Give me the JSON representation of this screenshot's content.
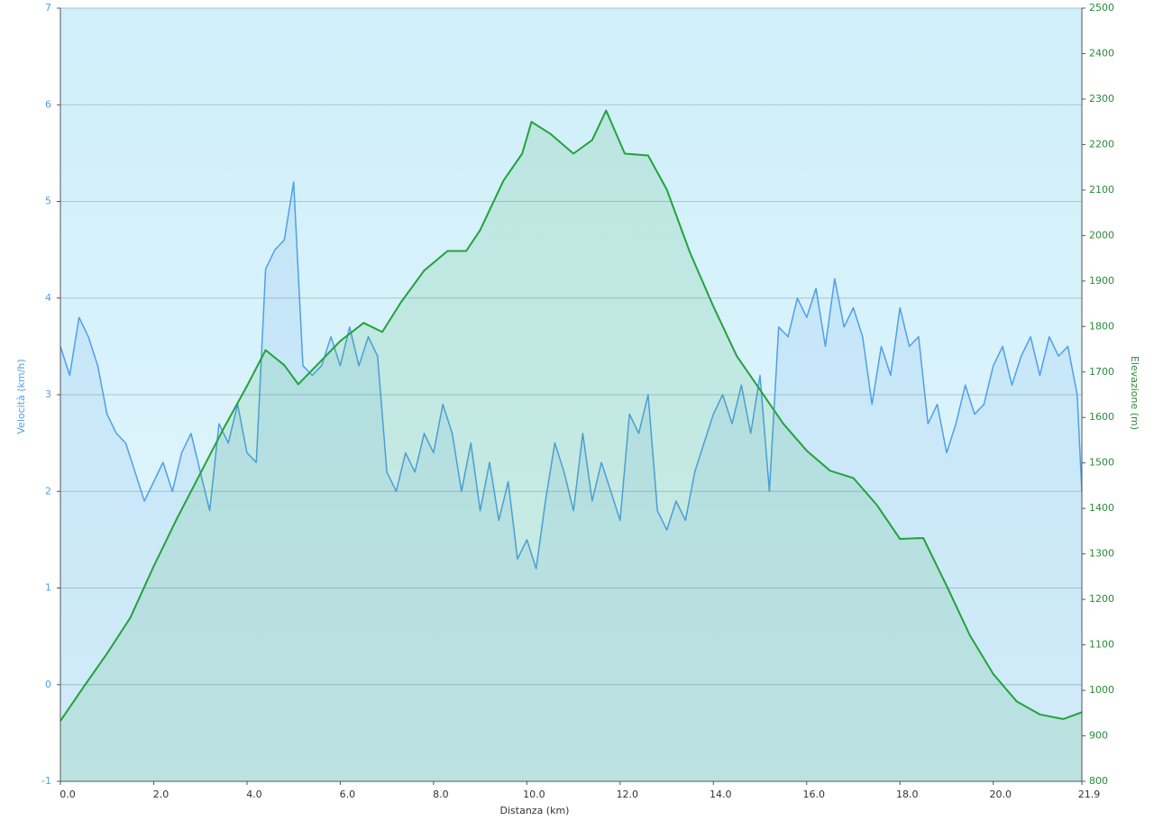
{
  "chart_data": {
    "type": "line",
    "xlabel": "Distanza  (km)",
    "ylabel": "Velocità (km/h)",
    "y2label": "Elevazione (m)",
    "xlim": [
      0,
      21.9
    ],
    "xticks": [
      {
        "value": 0,
        "label": "0.0"
      },
      {
        "value": 2,
        "label": "2.0"
      },
      {
        "value": 4,
        "label": "4.0"
      },
      {
        "value": 6,
        "label": "6.0"
      },
      {
        "value": 8,
        "label": "8.0"
      },
      {
        "value": 10,
        "label": "10.0"
      },
      {
        "value": 12,
        "label": "12.0"
      },
      {
        "value": 14,
        "label": "14.0"
      },
      {
        "value": 16,
        "label": "16.0"
      },
      {
        "value": 18,
        "label": "18.0"
      },
      {
        "value": 20,
        "label": "20.0"
      },
      21.9
    ],
    "ylim": [
      -1,
      7
    ],
    "yticks": [
      -1,
      0,
      1,
      2,
      3,
      4,
      5,
      6,
      7
    ],
    "y2lim": [
      800,
      2500
    ],
    "y2ticks": [
      800,
      900,
      1000,
      1100,
      1200,
      1300,
      1400,
      1500,
      1600,
      1700,
      1800,
      1900,
      2000,
      2100,
      2200,
      2300,
      2400,
      2500
    ],
    "grid": true,
    "series": [
      {
        "name": "Velocità",
        "color": "#4f9fe8",
        "x": [
          0,
          0.2,
          0.4,
          0.6,
          0.8,
          1,
          1.2,
          1.4,
          1.6,
          1.8,
          2,
          2.2,
          2.4,
          2.6,
          2.8,
          3,
          3.2,
          3.4,
          3.6,
          3.8,
          4,
          4.2,
          4.4,
          4.6,
          4.8,
          5,
          5.2,
          5.4,
          5.6,
          5.8,
          6,
          6.2,
          6.4,
          6.6,
          6.8,
          7,
          7.2,
          7.4,
          7.6,
          7.8,
          8,
          8.2,
          8.4,
          8.6,
          8.8,
          9,
          9.2,
          9.4,
          9.6,
          9.8,
          10,
          10.2,
          10.4,
          10.6,
          10.8,
          11,
          11.2,
          11.4,
          11.6,
          11.8,
          12,
          12.2,
          12.4,
          12.6,
          12.8,
          13,
          13.2,
          13.4,
          13.6,
          13.8,
          14,
          14.2,
          14.4,
          14.6,
          14.8,
          15,
          15.2,
          15.4,
          15.6,
          15.8,
          16,
          16.2,
          16.4,
          16.6,
          16.8,
          17,
          17.2,
          17.4,
          17.6,
          17.8,
          18,
          18.2,
          18.4,
          18.6,
          18.8,
          19,
          19.2,
          19.4,
          19.6,
          19.8,
          20,
          20.2,
          20.4,
          20.6,
          20.8,
          21,
          21.2,
          21.4,
          21.6,
          21.8,
          21.9
        ],
        "values": [
          3.5,
          3.2,
          3.8,
          3.6,
          3.3,
          2.8,
          2.6,
          2.5,
          2.2,
          1.9,
          2.1,
          2.3,
          2.0,
          2.4,
          2.6,
          2.2,
          1.8,
          2.7,
          2.5,
          2.9,
          2.4,
          2.3,
          4.3,
          4.5,
          4.6,
          5.2,
          3.3,
          3.2,
          3.3,
          3.6,
          3.3,
          3.7,
          3.3,
          3.6,
          3.4,
          2.2,
          2.0,
          2.4,
          2.2,
          2.6,
          2.4,
          2.9,
          2.6,
          2.0,
          2.5,
          1.8,
          2.3,
          1.7,
          2.1,
          1.3,
          1.5,
          1.2,
          1.9,
          2.5,
          2.2,
          1.8,
          2.6,
          1.9,
          2.3,
          2.0,
          1.7,
          2.8,
          2.6,
          3.0,
          1.8,
          1.6,
          1.9,
          1.7,
          2.2,
          2.5,
          2.8,
          3.0,
          2.7,
          3.1,
          2.6,
          3.2,
          2.0,
          3.7,
          3.6,
          4.0,
          3.8,
          4.1,
          3.5,
          4.2,
          3.7,
          3.9,
          3.6,
          2.9,
          3.5,
          3.2,
          3.9,
          3.5,
          3.6,
          2.7,
          2.9,
          2.4,
          2.7,
          3.1,
          2.8,
          2.9,
          3.3,
          3.5,
          3.1,
          3.4,
          3.6,
          3.2,
          3.6,
          3.4,
          3.5,
          3.0,
          2.0
        ]
      },
      {
        "name": "Elevazione",
        "color": "#22a33a",
        "axis": "y2",
        "x": [
          0,
          0.5,
          1,
          1.5,
          2,
          2.5,
          3,
          3.5,
          4,
          4.4,
          4.8,
          5.1,
          5.5,
          6,
          6.5,
          6.9,
          7.3,
          7.8,
          8.3,
          8.7,
          9,
          9.5,
          9.9,
          10.1,
          10.5,
          11,
          11.4,
          11.7,
          12.1,
          12.6,
          13,
          13.5,
          14,
          14.5,
          15,
          15.5,
          16,
          16.5,
          17,
          17.5,
          18,
          18.5,
          19,
          19.5,
          20,
          20.5,
          21,
          21.5,
          21.9
        ],
        "values": [
          933,
          1008,
          1081,
          1160,
          1273,
          1378,
          1477,
          1576,
          1669,
          1748,
          1715,
          1673,
          1715,
          1768,
          1808,
          1788,
          1853,
          1923,
          1966,
          1966,
          2012,
          2121,
          2180,
          2250,
          2224,
          2180,
          2210,
          2275,
          2180,
          2176,
          2101,
          1962,
          1844,
          1735,
          1661,
          1586,
          1527,
          1483,
          1467,
          1408,
          1333,
          1335,
          1230,
          1121,
          1036,
          976,
          947,
          937,
          952
        ]
      }
    ]
  }
}
